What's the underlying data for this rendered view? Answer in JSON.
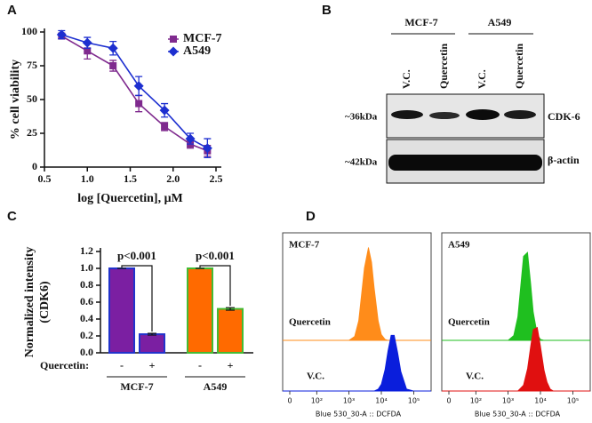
{
  "panel_labels": [
    "A",
    "B",
    "C",
    "D"
  ],
  "blot": {
    "groups": [
      "MCF-7",
      "A549"
    ],
    "lanes": [
      "V.C.",
      "Quercetin",
      "V.C.",
      "Quercetin"
    ],
    "rows": [
      {
        "marker": "~36kDa",
        "label": "CDK-6"
      },
      {
        "marker": "~42kDa",
        "label": "β-actin"
      }
    ]
  },
  "chart_data": [
    {
      "type": "line",
      "x_label": "log [Quercetin], μM",
      "y_label": "% cell viability",
      "x": [
        0.7,
        1.0,
        1.3,
        1.6,
        1.9,
        2.2,
        2.4
      ],
      "series": [
        {
          "name": "MCF-7",
          "color": "#7f2a8e",
          "marker": "square",
          "values": [
            97,
            86,
            75,
            47,
            30,
            17,
            12
          ],
          "errors": [
            2,
            6,
            4,
            6,
            3,
            3,
            4
          ]
        },
        {
          "name": "A549",
          "color": "#1d2fd0",
          "marker": "diamond",
          "values": [
            98,
            92,
            88,
            60,
            42,
            21,
            14
          ],
          "errors": [
            3,
            4,
            5,
            7,
            5,
            4,
            7
          ]
        }
      ],
      "xlim": [
        0.5,
        2.5
      ],
      "xticks": [
        0.5,
        {
          "value": 1.0,
          "label": "1.0"
        },
        1.5,
        {
          "value": 2.0,
          "label": "2.0"
        },
        2.5
      ],
      "ylim": [
        0,
        100
      ],
      "yticks": [
        0,
        25,
        50,
        75,
        100
      ],
      "legend": "upper right"
    },
    {
      "type": "bar",
      "y_label": [
        "Normalized intensity",
        "(CDK6)"
      ],
      "categories": [
        "-",
        "+",
        "-",
        "+"
      ],
      "values": [
        1.0,
        0.22,
        1.0,
        0.52
      ],
      "errors": [
        0,
        0.01,
        0,
        0.015
      ],
      "colors": [
        "#7b1fa2",
        "#7b1fa2",
        "#ff6a00",
        "#ff6a00"
      ],
      "edge_colors": [
        "#2233cc",
        "#2233cc",
        "#44bb33",
        "#44bb33"
      ],
      "groups": [
        "MCF-7",
        "A549"
      ],
      "row_label": "Quercetin:",
      "annotations": [
        "p<0.001",
        "p<0.001"
      ],
      "ylim": [
        0,
        1.2
      ],
      "yticks": [
        {
          "value": 0,
          "label": "0.0"
        },
        0.2,
        0.4,
        0.6,
        0.8,
        {
          "value": 1.0,
          "label": "1.0"
        },
        1.2
      ]
    },
    {
      "type": "area",
      "title": "MCF-7",
      "x_label": "Blue 530_30-A :: DCFDA",
      "x_scale": "biexponential",
      "x": [
        300,
        600,
        1000,
        1500,
        2000,
        3000,
        4000,
        5000,
        6000,
        8000,
        10000,
        13000,
        16000,
        20000,
        25000,
        32000,
        40000,
        60000,
        100000
      ],
      "series": [
        {
          "name": "Quercetin",
          "color": "#ff8c1a",
          "values": [
            0,
            0,
            0,
            4,
            20,
            74,
            95,
            80,
            54,
            20,
            6,
            1,
            0,
            0,
            0,
            0,
            0,
            0,
            0
          ]
        },
        {
          "name": "V.C.",
          "color": "#0a1edc",
          "values": [
            0,
            0,
            0,
            0,
            0,
            0,
            0,
            0,
            0,
            2,
            7,
            22,
            41,
            57,
            57,
            39,
            20,
            2,
            0
          ]
        }
      ],
      "xlim": [
        0,
        250000
      ],
      "xticks": [
        0,
        {
          "value": 100,
          "label": "10²"
        },
        {
          "value": 1000,
          "label": "10³"
        },
        {
          "value": 10000,
          "label": "10⁴"
        },
        {
          "value": 100000,
          "label": "10⁵"
        }
      ],
      "ylim": [
        0,
        100
      ]
    },
    {
      "type": "area",
      "title": "A549",
      "x_label": "Blue 530_30-A :: DCFDA",
      "x_scale": "biexponential",
      "x": [
        300,
        600,
        1000,
        1500,
        2000,
        3000,
        4000,
        5000,
        6000,
        8000,
        10000,
        13000,
        16000,
        20000,
        25000,
        32000,
        40000,
        60000,
        100000
      ],
      "series": [
        {
          "name": "Quercetin",
          "color": "#1fbf1f",
          "values": [
            0,
            0,
            0,
            5,
            24,
            86,
            90,
            58,
            29,
            6,
            1,
            0,
            0,
            0,
            0,
            0,
            0,
            0,
            0
          ]
        },
        {
          "name": "V.C.",
          "color": "#e01010",
          "values": [
            0,
            0,
            0,
            0,
            0,
            6,
            23,
            46,
            63,
            65,
            46,
            21,
            9,
            2,
            0,
            0,
            0,
            0,
            0
          ]
        }
      ],
      "xlim": [
        0,
        250000
      ],
      "xticks": [
        0,
        {
          "value": 100,
          "label": "10²"
        },
        {
          "value": 1000,
          "label": "10³"
        },
        {
          "value": 10000,
          "label": "10⁴"
        },
        {
          "value": 100000,
          "label": "10⁵"
        }
      ],
      "ylim": [
        0,
        100
      ]
    }
  ]
}
